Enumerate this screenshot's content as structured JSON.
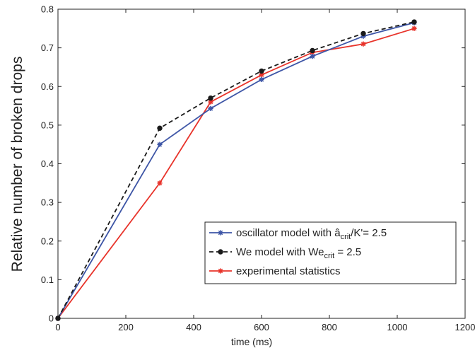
{
  "chart_data": {
    "type": "line",
    "title": "",
    "xlabel": "time (ms)",
    "ylabel": "Relative number of broken drops",
    "xlim": [
      0,
      1200
    ],
    "ylim": [
      0,
      0.8
    ],
    "xticks": [
      0,
      200,
      400,
      600,
      800,
      1000,
      1200
    ],
    "xtick_labels": [
      "0",
      "200",
      "400",
      "600",
      "800",
      "1000",
      "1200"
    ],
    "yticks": [
      0,
      0.1,
      0.2,
      0.3,
      0.4,
      0.5,
      0.6,
      0.7,
      0.8
    ],
    "ytick_labels": [
      "0",
      "0.1",
      "0.2",
      "0.3",
      "0.4",
      "0.5",
      "0.6",
      "0.7",
      "0.8"
    ],
    "grid": false,
    "legend_position": "bottom-right",
    "x": [
      0,
      300,
      450,
      600,
      750,
      900,
      1050
    ],
    "series": [
      {
        "name": "oscillator model with â crit/K' = 2.5",
        "legend_main": "oscillator model with â",
        "legend_sub": "crit",
        "legend_rest": "/K'= 2.5",
        "color": "#3d55a6",
        "dash": "solid",
        "marker": "star",
        "values": [
          0,
          0.45,
          0.543,
          0.618,
          0.678,
          0.73,
          0.765
        ]
      },
      {
        "name": "We model with We crit = 2.5",
        "legend_main": "We model with We",
        "legend_sub": "crit",
        "legend_rest": " = 2.5",
        "color": "#1a1a1a",
        "dash": "dashed",
        "marker": "dot",
        "values": [
          0,
          0.492,
          0.57,
          0.64,
          0.693,
          0.737,
          0.767
        ]
      },
      {
        "name": "experimental statistics",
        "legend_main": "experimental statistics",
        "legend_sub": "",
        "legend_rest": "",
        "color": "#e8332a",
        "dash": "solid",
        "marker": "star",
        "values": [
          0,
          0.35,
          0.56,
          0.63,
          0.688,
          0.71,
          0.75
        ]
      }
    ]
  }
}
